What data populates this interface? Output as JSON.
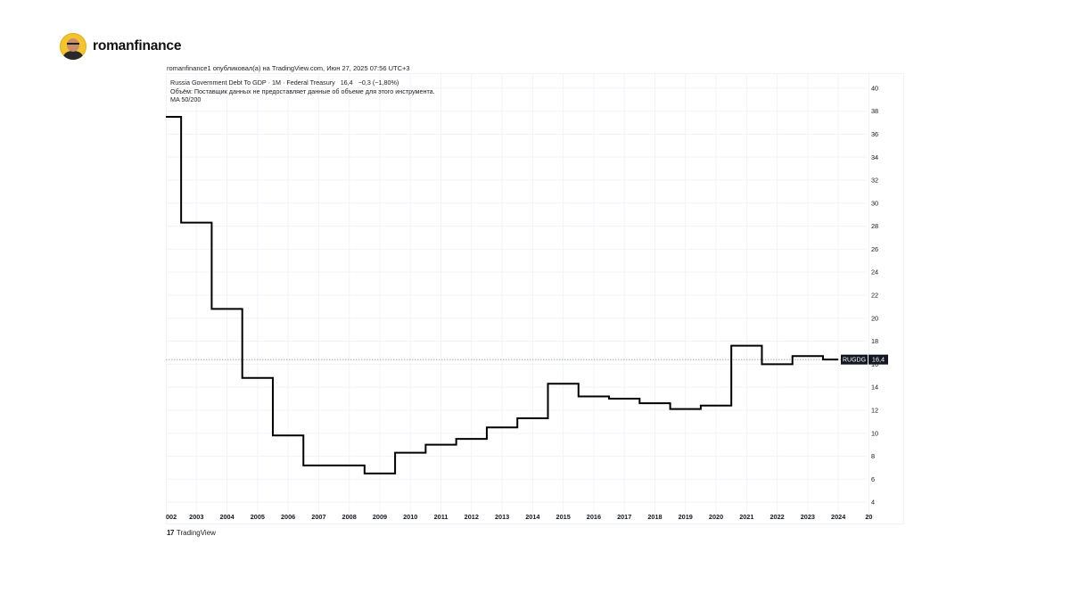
{
  "header": {
    "brand": "romanfinance"
  },
  "published": "romanfinance1 опубликовал(а) на TradingView.com, Июн 27, 2025 07:56 UTC+3",
  "legend": {
    "title": "Russia Government Debt To GDP · 1M · Federal Treasury",
    "value": "16,4",
    "change": "−0,3 (−1,80%)",
    "volume_note": "Объём: Поставщик данных не предоставляет данные об объеме для этого инструмента.",
    "ma": "MA 50/200"
  },
  "footer": {
    "logo": "17",
    "label": "TradingView"
  },
  "chart_data": {
    "type": "line",
    "step": true,
    "symbol_label": "RUGDG",
    "last_value_label": "16,4",
    "last_value": 16.4,
    "x_ticks": [
      "002",
      "2003",
      "2004",
      "2005",
      "2006",
      "2007",
      "2008",
      "2009",
      "2010",
      "2011",
      "2012",
      "2013",
      "2014",
      "2015",
      "2016",
      "2017",
      "2018",
      "2019",
      "2020",
      "2021",
      "2022",
      "2023",
      "2024",
      "20"
    ],
    "y_ticks": [
      4,
      6,
      8,
      10,
      12,
      14,
      16,
      18,
      20,
      22,
      24,
      26,
      28,
      30,
      32,
      34,
      36,
      38,
      40
    ],
    "ylim": [
      3,
      41.3
    ],
    "xlim": [
      2002.0,
      2024.9
    ],
    "grid": true,
    "series": [
      {
        "x": [
          2002.0,
          2002.5,
          2003.5,
          2004.5,
          2005.5,
          2006.5,
          2007.5,
          2008.5,
          2009.5,
          2010.5,
          2011.5,
          2012.5,
          2013.5,
          2014.5,
          2015.5,
          2016.5,
          2017.5,
          2018.5,
          2019.5,
          2020.5,
          2021.5,
          2022.5,
          2023.5,
          2024.0
        ],
        "y": [
          37.5,
          28.3,
          20.8,
          14.8,
          9.8,
          7.2,
          7.2,
          6.5,
          8.3,
          9.0,
          9.5,
          10.5,
          11.3,
          14.3,
          13.2,
          13.0,
          12.6,
          12.1,
          12.4,
          17.6,
          16.0,
          16.7,
          16.4,
          16.4
        ]
      }
    ]
  }
}
